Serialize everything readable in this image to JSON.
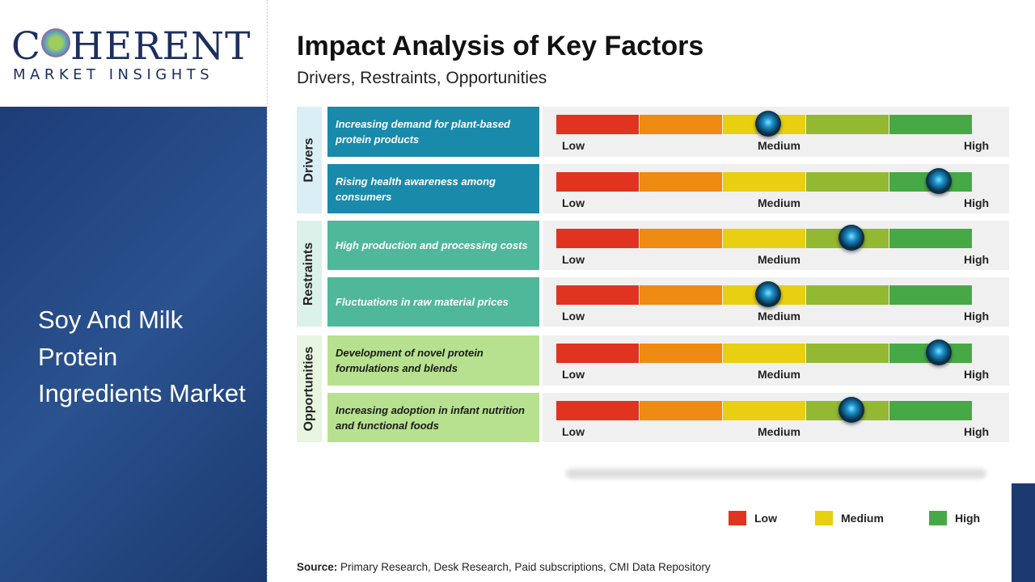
{
  "logo": {
    "text_main": "COHERENT",
    "text_sub": "MARKET INSIGHTS"
  },
  "market_name": "Soy And Milk Protein Ingredients Market",
  "header": {
    "title": "Impact Analysis of Key Factors",
    "subtitle": "Drivers, Restraints, Opportunities"
  },
  "scale_labels": {
    "low": "Low",
    "medium": "Medium",
    "high": "High"
  },
  "scale_colors": [
    "#e03320",
    "#ef8a12",
    "#e9cf12",
    "#93b832",
    "#47a946"
  ],
  "categories": [
    {
      "name": "Drivers",
      "bg": "#daeef6",
      "row_color": "#1a8aab",
      "text_color": "#ffffff"
    },
    {
      "name": "Restraints",
      "bg": "#dbf1ea",
      "row_color": "#4fb89a",
      "text_color": "#ffffff"
    },
    {
      "name": "Opportunities",
      "bg": "#e8f5e0",
      "row_color": "#b7e18e",
      "text_color": "#1a1a1a"
    }
  ],
  "factors": [
    {
      "category": 0,
      "text": "Increasing demand for plant-based protein products",
      "impact_level": 0.51
    },
    {
      "category": 0,
      "text": "Rising health awareness among consumers",
      "impact_level": 0.92
    },
    {
      "category": 1,
      "text": "High production and processing costs",
      "impact_level": 0.71
    },
    {
      "category": 1,
      "text": "Fluctuations in raw material prices",
      "impact_level": 0.51
    },
    {
      "category": 2,
      "text": "Development of novel protein formulations and blends",
      "impact_level": 0.92
    },
    {
      "category": 2,
      "text": "Increasing adoption in infant nutrition and functional foods",
      "impact_level": 0.71
    }
  ],
  "legend": [
    {
      "label": "Low",
      "color": "#e03320"
    },
    {
      "label": "Medium",
      "color": "#e9cf12"
    },
    {
      "label": "High",
      "color": "#47a946"
    }
  ],
  "source": {
    "label": "Source:",
    "text": " Primary Research, Desk Research, Paid subscriptions, CMI Data Repository"
  }
}
